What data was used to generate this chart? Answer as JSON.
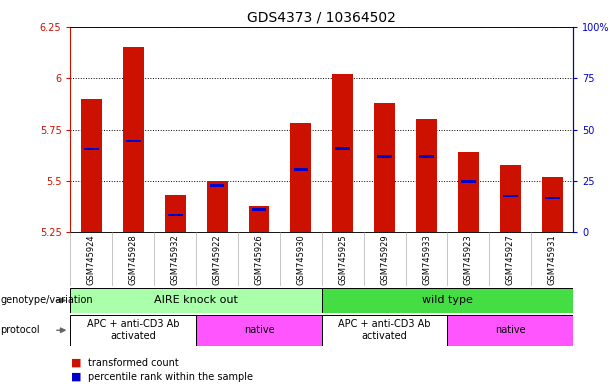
{
  "title": "GDS4373 / 10364502",
  "samples": [
    "GSM745924",
    "GSM745928",
    "GSM745932",
    "GSM745922",
    "GSM745926",
    "GSM745930",
    "GSM745925",
    "GSM745929",
    "GSM745933",
    "GSM745923",
    "GSM745927",
    "GSM745931"
  ],
  "transformed_count": [
    5.9,
    6.15,
    5.43,
    5.5,
    5.38,
    5.78,
    6.02,
    5.88,
    5.8,
    5.64,
    5.58,
    5.52
  ],
  "percentile_rank_y": [
    5.655,
    5.695,
    5.335,
    5.478,
    5.362,
    5.555,
    5.658,
    5.618,
    5.62,
    5.498,
    5.428,
    5.418
  ],
  "ylim_min": 5.25,
  "ylim_max": 6.25,
  "yticks": [
    5.25,
    5.5,
    5.75,
    6.0,
    6.25
  ],
  "ytick_labels": [
    "5.25",
    "5.5",
    "5.75",
    "6",
    "6.25"
  ],
  "right_yticks": [
    0,
    25,
    50,
    75,
    100
  ],
  "right_ytick_labels": [
    "0",
    "25",
    "50",
    "75",
    "100%"
  ],
  "bar_color": "#cc1100",
  "percentile_color": "#0000cc",
  "base_value": 5.25,
  "bar_width": 0.5,
  "percentile_bar_width": 0.35,
  "percentile_bar_height": 0.012,
  "genotype_groups": [
    {
      "label": "AIRE knock out",
      "start": 0,
      "end": 6,
      "color": "#aaffaa"
    },
    {
      "label": "wild type",
      "start": 6,
      "end": 12,
      "color": "#44dd44"
    }
  ],
  "protocol_groups": [
    {
      "label": "APC + anti-CD3 Ab\nactivated",
      "start": 0,
      "end": 3,
      "color": "#ffffff"
    },
    {
      "label": "native",
      "start": 3,
      "end": 6,
      "color": "#ff55ff"
    },
    {
      "label": "APC + anti-CD3 Ab\nactivated",
      "start": 6,
      "end": 9,
      "color": "#ffffff"
    },
    {
      "label": "native",
      "start": 9,
      "end": 12,
      "color": "#ff55ff"
    }
  ],
  "legend_items": [
    {
      "label": "transformed count",
      "color": "#cc1100"
    },
    {
      "label": "percentile rank within the sample",
      "color": "#0000cc"
    }
  ],
  "title_fontsize": 10,
  "tick_fontsize": 7,
  "sample_fontsize": 6,
  "annot_fontsize": 8,
  "label_fontsize": 7,
  "legend_fontsize": 7
}
